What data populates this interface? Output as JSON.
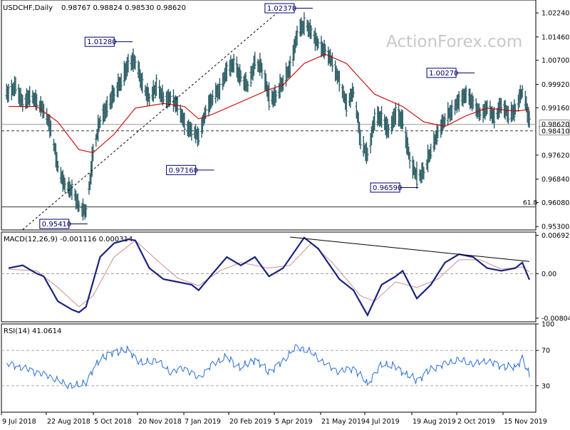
{
  "chart_data": {
    "type": "line",
    "header": {
      "symbol_timeframe": "USDCHF,Daily",
      "ohlc": "0.98767 0.98824 0.98530 0.98620"
    },
    "watermark": "ActionForex.com",
    "x_tick_labels": [
      "9 Jul 2018",
      "22 Aug 2018",
      "5 Oct 2018",
      "20 Nov 2018",
      "7 Jan 2019",
      "20 Feb 2019",
      "5 Apr 2019",
      "21 May 2019",
      "4 Jul 2019",
      "19 Aug 2019",
      "2 Oct 2019",
      "15 Nov 2019"
    ],
    "price_panel": {
      "y_tick_labels": [
        "1.02240",
        "1.01460",
        "1.00700",
        "0.99920",
        "0.99160",
        "0.98620",
        "0.98410",
        "0.97620",
        "0.96840",
        "0.96080",
        "0.95300"
      ],
      "ylim": [
        0.9519,
        1.0266
      ],
      "series": [
        {
          "kind": "ohlc_bars",
          "color": "#2e5f66"
        },
        {
          "kind": "moving_average",
          "color": "#cc0000"
        }
      ],
      "key_levels": [
        {
          "label": "1.02370",
          "price": 1.0237,
          "type": "high"
        },
        {
          "label": "1.01280",
          "price": 1.0128,
          "type": "high"
        },
        {
          "label": "1.00270",
          "price": 1.0027,
          "type": "high"
        },
        {
          "label": "0.97160",
          "price": 0.9716,
          "type": "low"
        },
        {
          "label": "0.96590",
          "price": 0.9659,
          "type": "low"
        },
        {
          "label": "0.95410",
          "price": 0.9541,
          "type": "low"
        }
      ],
      "horizontal_lines": [
        {
          "price": 0.9862,
          "style": "solid",
          "color": "#999999"
        },
        {
          "price": 0.9841,
          "style": "dashed",
          "color": "#333333"
        },
        {
          "price": 0.9594,
          "style": "solid",
          "color": "#333333",
          "label": "61.8"
        }
      ],
      "trendline": {
        "from": "2018-08-24",
        "to": "2019-04-10",
        "style": "dashed"
      },
      "weekly_closes": [
        {
          "x": "2018-07-06",
          "y": 0.9965
        },
        {
          "x": "2018-07-13",
          "y": 0.9985
        },
        {
          "x": "2018-07-20",
          "y": 0.9928
        },
        {
          "x": "2018-07-27",
          "y": 0.9955
        },
        {
          "x": "2018-08-03",
          "y": 0.9935
        },
        {
          "x": "2018-08-10",
          "y": 0.9905
        },
        {
          "x": "2018-08-17",
          "y": 0.9845
        },
        {
          "x": "2018-08-24",
          "y": 0.9715
        },
        {
          "x": "2018-08-31",
          "y": 0.966
        },
        {
          "x": "2018-09-07",
          "y": 0.965
        },
        {
          "x": "2018-09-14",
          "y": 0.959
        },
        {
          "x": "2018-09-21",
          "y": 0.958
        },
        {
          "x": "2018-09-28",
          "y": 0.978
        },
        {
          "x": "2018-10-05",
          "y": 0.988
        },
        {
          "x": "2018-10-12",
          "y": 0.992
        },
        {
          "x": "2018-10-19",
          "y": 0.9965
        },
        {
          "x": "2018-10-26",
          "y": 1.0005
        },
        {
          "x": "2018-11-02",
          "y": 1.006
        },
        {
          "x": "2018-11-09",
          "y": 1.007
        },
        {
          "x": "2018-11-16",
          "y": 0.9985
        },
        {
          "x": "2018-11-23",
          "y": 0.9945
        },
        {
          "x": "2018-11-30",
          "y": 0.999
        },
        {
          "x": "2018-12-07",
          "y": 0.994
        },
        {
          "x": "2018-12-14",
          "y": 0.995
        },
        {
          "x": "2018-12-21",
          "y": 0.992
        },
        {
          "x": "2018-12-28",
          "y": 0.986
        },
        {
          "x": "2019-01-04",
          "y": 0.984
        },
        {
          "x": "2019-01-11",
          "y": 0.982
        },
        {
          "x": "2019-01-18",
          "y": 0.991
        },
        {
          "x": "2019-01-25",
          "y": 0.995
        },
        {
          "x": "2019-02-01",
          "y": 0.998
        },
        {
          "x": "2019-02-08",
          "y": 1.004
        },
        {
          "x": "2019-02-15",
          "y": 1.006
        },
        {
          "x": "2019-02-22",
          "y": 1.001
        },
        {
          "x": "2019-03-01",
          "y": 0.9985
        },
        {
          "x": "2019-03-08",
          "y": 1.007
        },
        {
          "x": "2019-03-15",
          "y": 1.004
        },
        {
          "x": "2019-03-22",
          "y": 0.9945
        },
        {
          "x": "2019-03-29",
          "y": 0.9955
        },
        {
          "x": "2019-04-05",
          "y": 1.0005
        },
        {
          "x": "2019-04-12",
          "y": 1.005
        },
        {
          "x": "2019-04-19",
          "y": 1.016
        },
        {
          "x": "2019-04-26",
          "y": 1.019
        },
        {
          "x": "2019-05-03",
          "y": 1.016
        },
        {
          "x": "2019-05-10",
          "y": 1.012
        },
        {
          "x": "2019-05-17",
          "y": 1.01
        },
        {
          "x": "2019-05-24",
          "y": 1.006
        },
        {
          "x": "2019-05-31",
          "y": 1.0
        },
        {
          "x": "2019-06-07",
          "y": 0.992
        },
        {
          "x": "2019-06-14",
          "y": 0.9975
        },
        {
          "x": "2019-06-21",
          "y": 0.98
        },
        {
          "x": "2019-06-28",
          "y": 0.976
        },
        {
          "x": "2019-07-05",
          "y": 0.989
        },
        {
          "x": "2019-07-12",
          "y": 0.988
        },
        {
          "x": "2019-07-19",
          "y": 0.984
        },
        {
          "x": "2019-07-26",
          "y": 0.99
        },
        {
          "x": "2019-08-02",
          "y": 0.987
        },
        {
          "x": "2019-08-09",
          "y": 0.974
        },
        {
          "x": "2019-08-16",
          "y": 0.969
        },
        {
          "x": "2019-08-23",
          "y": 0.971
        },
        {
          "x": "2019-08-30",
          "y": 0.978
        },
        {
          "x": "2019-09-06",
          "y": 0.984
        },
        {
          "x": "2019-09-13",
          "y": 0.988
        },
        {
          "x": "2019-09-20",
          "y": 0.991
        },
        {
          "x": "2019-09-27",
          "y": 0.994
        },
        {
          "x": "2019-10-04",
          "y": 0.996
        },
        {
          "x": "2019-10-11",
          "y": 0.993
        },
        {
          "x": "2019-10-18",
          "y": 0.989
        },
        {
          "x": "2019-10-25",
          "y": 0.992
        },
        {
          "x": "2019-11-01",
          "y": 0.988
        },
        {
          "x": "2019-11-08",
          "y": 0.993
        },
        {
          "x": "2019-11-15",
          "y": 0.989
        },
        {
          "x": "2019-11-22",
          "y": 0.991
        },
        {
          "x": "2019-11-29",
          "y": 0.998
        },
        {
          "x": "2019-12-06",
          "y": 0.9862
        }
      ],
      "moving_average": [
        {
          "x": "2018-07-06",
          "y": 0.992
        },
        {
          "x": "2018-08-03",
          "y": 0.992
        },
        {
          "x": "2018-08-24",
          "y": 0.987
        },
        {
          "x": "2018-09-14",
          "y": 0.978
        },
        {
          "x": "2018-09-28",
          "y": 0.977
        },
        {
          "x": "2018-10-19",
          "y": 0.983
        },
        {
          "x": "2018-11-09",
          "y": 0.9915
        },
        {
          "x": "2018-12-07",
          "y": 0.993
        },
        {
          "x": "2018-12-28",
          "y": 0.992
        },
        {
          "x": "2019-01-11",
          "y": 0.988
        },
        {
          "x": "2019-01-25",
          "y": 0.9895
        },
        {
          "x": "2019-02-22",
          "y": 0.9935
        },
        {
          "x": "2019-03-22",
          "y": 0.9975
        },
        {
          "x": "2019-04-05",
          "y": 0.999
        },
        {
          "x": "2019-04-26",
          "y": 1.006
        },
        {
          "x": "2019-05-17",
          "y": 1.009
        },
        {
          "x": "2019-06-07",
          "y": 1.006
        },
        {
          "x": "2019-07-05",
          "y": 0.996
        },
        {
          "x": "2019-08-02",
          "y": 0.992
        },
        {
          "x": "2019-08-23",
          "y": 0.987
        },
        {
          "x": "2019-09-13",
          "y": 0.9855
        },
        {
          "x": "2019-10-04",
          "y": 0.989
        },
        {
          "x": "2019-10-25",
          "y": 0.9915
        },
        {
          "x": "2019-11-22",
          "y": 0.9905
        },
        {
          "x": "2019-12-06",
          "y": 0.991
        }
      ]
    },
    "macd_panel": {
      "label": "MACD(12,26,9) -0.001116 0.000314",
      "y_tick_labels": [
        "0.006927",
        "0.00",
        "-0.008049"
      ],
      "ylim": [
        -0.0087,
        0.0075
      ],
      "colors": {
        "macd": "#1a237e",
        "signal": "#d08f8f",
        "trendline": "#000000"
      },
      "macd": [
        {
          "x": "2018-07-06",
          "y": 0.001
        },
        {
          "x": "2018-07-20",
          "y": 0.0015
        },
        {
          "x": "2018-08-03",
          "y": 0.0
        },
        {
          "x": "2018-08-10",
          "y": -0.0005
        },
        {
          "x": "2018-08-24",
          "y": -0.005
        },
        {
          "x": "2018-09-07",
          "y": -0.0065
        },
        {
          "x": "2018-09-14",
          "y": -0.007
        },
        {
          "x": "2018-09-21",
          "y": -0.006
        },
        {
          "x": "2018-10-05",
          "y": 0.003
        },
        {
          "x": "2018-10-19",
          "y": 0.0055
        },
        {
          "x": "2018-11-02",
          "y": 0.0062
        },
        {
          "x": "2018-11-09",
          "y": 0.006
        },
        {
          "x": "2018-11-23",
          "y": 0.001
        },
        {
          "x": "2018-12-07",
          "y": -0.001
        },
        {
          "x": "2018-12-21",
          "y": -0.0015
        },
        {
          "x": "2019-01-04",
          "y": -0.002
        },
        {
          "x": "2019-01-11",
          "y": -0.003
        },
        {
          "x": "2019-01-25",
          "y": 0.0
        },
        {
          "x": "2019-02-08",
          "y": 0.003
        },
        {
          "x": "2019-02-22",
          "y": 0.0015
        },
        {
          "x": "2019-03-08",
          "y": 0.003
        },
        {
          "x": "2019-03-22",
          "y": -0.0005
        },
        {
          "x": "2019-04-05",
          "y": 0.001
        },
        {
          "x": "2019-04-26",
          "y": 0.0065
        },
        {
          "x": "2019-05-10",
          "y": 0.0045
        },
        {
          "x": "2019-05-31",
          "y": -0.001
        },
        {
          "x": "2019-06-14",
          "y": -0.003
        },
        {
          "x": "2019-06-28",
          "y": -0.0075
        },
        {
          "x": "2019-07-12",
          "y": -0.002
        },
        {
          "x": "2019-07-26",
          "y": -0.0005
        },
        {
          "x": "2019-08-02",
          "y": 0.0005
        },
        {
          "x": "2019-08-16",
          "y": -0.0045
        },
        {
          "x": "2019-08-30",
          "y": -0.002
        },
        {
          "x": "2019-09-13",
          "y": 0.002
        },
        {
          "x": "2019-09-27",
          "y": 0.0035
        },
        {
          "x": "2019-10-11",
          "y": 0.003
        },
        {
          "x": "2019-10-25",
          "y": 0.001
        },
        {
          "x": "2019-11-08",
          "y": 0.0005
        },
        {
          "x": "2019-11-22",
          "y": 0.001
        },
        {
          "x": "2019-11-29",
          "y": 0.002
        },
        {
          "x": "2019-12-06",
          "y": -0.0011
        }
      ],
      "signal": [
        {
          "x": "2018-07-06",
          "y": 0.0008
        },
        {
          "x": "2018-08-03",
          "y": 0.0005
        },
        {
          "x": "2018-08-24",
          "y": -0.0025
        },
        {
          "x": "2018-09-14",
          "y": -0.006
        },
        {
          "x": "2018-09-28",
          "y": -0.004
        },
        {
          "x": "2018-10-19",
          "y": 0.003
        },
        {
          "x": "2018-11-09",
          "y": 0.006
        },
        {
          "x": "2018-11-30",
          "y": 0.0025
        },
        {
          "x": "2018-12-21",
          "y": -0.0008
        },
        {
          "x": "2019-01-11",
          "y": -0.0022
        },
        {
          "x": "2019-02-01",
          "y": 0.0005
        },
        {
          "x": "2019-02-22",
          "y": 0.002
        },
        {
          "x": "2019-03-22",
          "y": 0.001
        },
        {
          "x": "2019-04-12",
          "y": 0.0015
        },
        {
          "x": "2019-05-03",
          "y": 0.0055
        },
        {
          "x": "2019-05-24",
          "y": 0.002
        },
        {
          "x": "2019-06-21",
          "y": -0.004
        },
        {
          "x": "2019-07-05",
          "y": -0.005
        },
        {
          "x": "2019-07-26",
          "y": -0.0015
        },
        {
          "x": "2019-08-16",
          "y": -0.0025
        },
        {
          "x": "2019-09-06",
          "y": -0.001
        },
        {
          "x": "2019-09-27",
          "y": 0.0025
        },
        {
          "x": "2019-10-18",
          "y": 0.0025
        },
        {
          "x": "2019-11-08",
          "y": 0.0008
        },
        {
          "x": "2019-11-29",
          "y": 0.0012
        },
        {
          "x": "2019-12-06",
          "y": 0.0003
        }
      ],
      "trendline": {
        "from": {
          "x": "2019-04-12",
          "y": 0.0066
        },
        "to": {
          "x": "2019-12-06",
          "y": 0.0022
        }
      }
    },
    "rsi_panel": {
      "label": "RSI(14) 41.0614",
      "y_tick_labels": [
        "100",
        "70",
        "30"
      ],
      "ylim": [
        0,
        100
      ],
      "color": "#2a6fd6",
      "reference_levels": [
        70,
        30
      ],
      "rsi": [
        {
          "x": "2018-07-06",
          "y": 55
        },
        {
          "x": "2018-07-20",
          "y": 50
        },
        {
          "x": "2018-08-03",
          "y": 45
        },
        {
          "x": "2018-08-17",
          "y": 40
        },
        {
          "x": "2018-08-31",
          "y": 32
        },
        {
          "x": "2018-09-14",
          "y": 30
        },
        {
          "x": "2018-09-21",
          "y": 35
        },
        {
          "x": "2018-10-05",
          "y": 60
        },
        {
          "x": "2018-10-19",
          "y": 68
        },
        {
          "x": "2018-11-02",
          "y": 70
        },
        {
          "x": "2018-11-16",
          "y": 55
        },
        {
          "x": "2018-11-30",
          "y": 60
        },
        {
          "x": "2018-12-14",
          "y": 45
        },
        {
          "x": "2018-12-28",
          "y": 50
        },
        {
          "x": "2019-01-11",
          "y": 38
        },
        {
          "x": "2019-01-25",
          "y": 55
        },
        {
          "x": "2019-02-08",
          "y": 63
        },
        {
          "x": "2019-02-22",
          "y": 50
        },
        {
          "x": "2019-03-08",
          "y": 60
        },
        {
          "x": "2019-03-22",
          "y": 45
        },
        {
          "x": "2019-04-05",
          "y": 58
        },
        {
          "x": "2019-04-19",
          "y": 75
        },
        {
          "x": "2019-05-03",
          "y": 68
        },
        {
          "x": "2019-05-17",
          "y": 55
        },
        {
          "x": "2019-05-31",
          "y": 45
        },
        {
          "x": "2019-06-14",
          "y": 50
        },
        {
          "x": "2019-06-28",
          "y": 32
        },
        {
          "x": "2019-07-12",
          "y": 55
        },
        {
          "x": "2019-07-26",
          "y": 52
        },
        {
          "x": "2019-08-09",
          "y": 40
        },
        {
          "x": "2019-08-16",
          "y": 36
        },
        {
          "x": "2019-08-30",
          "y": 48
        },
        {
          "x": "2019-09-13",
          "y": 55
        },
        {
          "x": "2019-09-27",
          "y": 60
        },
        {
          "x": "2019-10-11",
          "y": 55
        },
        {
          "x": "2019-10-25",
          "y": 58
        },
        {
          "x": "2019-11-08",
          "y": 52
        },
        {
          "x": "2019-11-22",
          "y": 50
        },
        {
          "x": "2019-11-29",
          "y": 62
        },
        {
          "x": "2019-12-06",
          "y": 41
        }
      ]
    }
  }
}
